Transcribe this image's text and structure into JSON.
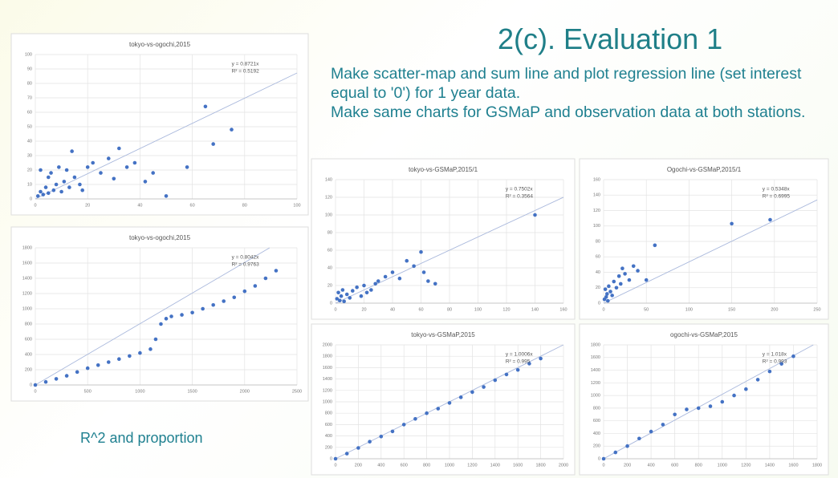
{
  "title": "2(c). Evaluation 1",
  "description": [
    "Make scatter-map and sum line and plot regression line (set interest equal to '0') for 1 year data.",
    "Make same charts for GSMaP and observation data at both stations."
  ],
  "caption": "R^2 and proportion",
  "chart_data": [
    {
      "type": "scatter",
      "title": "tokyo-vs-ogochi,2015",
      "color": "#4472c4",
      "x": [
        1,
        2,
        2,
        3,
        4,
        5,
        5,
        6,
        7,
        8,
        9,
        10,
        11,
        12,
        13,
        14,
        15,
        17,
        18,
        20,
        22,
        25,
        28,
        30,
        32,
        35,
        38,
        42,
        45,
        50,
        58,
        65,
        68,
        75
      ],
      "values": [
        2,
        20,
        5,
        3,
        8,
        15,
        4,
        18,
        6,
        10,
        22,
        5,
        12,
        20,
        8,
        33,
        15,
        10,
        6,
        22,
        25,
        18,
        28,
        14,
        35,
        22,
        25,
        12,
        18,
        2,
        22,
        64,
        38,
        48
      ],
      "trendline": {
        "slope": 0.8721,
        "label": "y = 0.8721x"
      },
      "r2_label": "R² = 0.5192",
      "xlim": [
        0,
        100
      ],
      "xticks": [
        0,
        20,
        40,
        60,
        80,
        100
      ],
      "ylim": [
        0,
        100
      ],
      "yticks": [
        0,
        10,
        20,
        30,
        40,
        50,
        60,
        70,
        80,
        90,
        100
      ],
      "grid": true
    },
    {
      "type": "scatter",
      "title": "tokyo-vs-ogochi,2015",
      "color": "#4472c4",
      "x": [
        0,
        100,
        200,
        300,
        400,
        500,
        600,
        700,
        800,
        900,
        1000,
        1100,
        1150,
        1200,
        1250,
        1300,
        1400,
        1500,
        1600,
        1700,
        1800,
        1900,
        2000,
        2100,
        2200,
        2300
      ],
      "values": [
        0,
        40,
        80,
        120,
        170,
        220,
        260,
        300,
        340,
        380,
        420,
        470,
        600,
        800,
        870,
        900,
        920,
        950,
        1000,
        1050,
        1100,
        1150,
        1230,
        1300,
        1400,
        1500
      ],
      "trendline": {
        "slope": 0.8042,
        "label": "y = 0.8042x"
      },
      "r2_label": "R² = 0.9763",
      "xlim": [
        0,
        2500
      ],
      "xticks": [
        0,
        500,
        1000,
        1500,
        2000,
        2500
      ],
      "ylim": [
        0,
        1800
      ],
      "yticks": [
        0,
        200,
        400,
        600,
        800,
        1000,
        1200,
        1400,
        1600,
        1800
      ],
      "grid": true
    },
    {
      "type": "scatter",
      "title": "tokyo-vs-GSMaP,2015/1",
      "color": "#4472c4",
      "x": [
        1,
        2,
        3,
        4,
        5,
        6,
        8,
        10,
        12,
        15,
        18,
        20,
        22,
        25,
        28,
        30,
        35,
        40,
        45,
        50,
        55,
        60,
        62,
        65,
        70,
        140
      ],
      "values": [
        5,
        12,
        3,
        8,
        15,
        2,
        10,
        6,
        14,
        18,
        8,
        20,
        12,
        15,
        22,
        25,
        30,
        35,
        28,
        48,
        42,
        58,
        35,
        25,
        22,
        100
      ],
      "trendline": {
        "slope": 0.7502,
        "label": "y = 0.7502x"
      },
      "r2_label": "R² = 0.3564",
      "xlim": [
        0,
        160
      ],
      "xticks": [
        0,
        20,
        40,
        60,
        80,
        100,
        120,
        140,
        160
      ],
      "ylim": [
        0,
        140
      ],
      "yticks": [
        0,
        20,
        40,
        60,
        80,
        100,
        120,
        140
      ],
      "grid": true
    },
    {
      "type": "scatter",
      "title": "Ogochi-vs-GSMaP,2015/1",
      "color": "#4472c4",
      "x": [
        1,
        2,
        3,
        4,
        5,
        6,
        8,
        10,
        12,
        15,
        18,
        20,
        22,
        25,
        30,
        35,
        40,
        50,
        60,
        150,
        195
      ],
      "values": [
        5,
        18,
        8,
        12,
        3,
        22,
        15,
        10,
        28,
        20,
        35,
        25,
        45,
        38,
        30,
        48,
        42,
        30,
        75,
        103,
        108
      ],
      "trendline": {
        "slope": 0.5348,
        "label": "y = 0.5348x"
      },
      "r2_label": "R² = 0.6995",
      "xlim": [
        0,
        250
      ],
      "xticks": [
        0,
        50,
        100,
        150,
        200,
        250
      ],
      "ylim": [
        0,
        160
      ],
      "yticks": [
        0,
        20,
        40,
        60,
        80,
        100,
        120,
        140,
        160
      ],
      "grid": true
    },
    {
      "type": "scatter",
      "title": "tokyo-vs-GSMaP,2015",
      "color": "#4472c4",
      "x": [
        0,
        100,
        200,
        300,
        400,
        500,
        600,
        700,
        800,
        900,
        1000,
        1100,
        1200,
        1300,
        1400,
        1500,
        1600,
        1700,
        1800
      ],
      "values": [
        0,
        90,
        190,
        300,
        390,
        480,
        600,
        700,
        800,
        880,
        980,
        1080,
        1170,
        1260,
        1380,
        1480,
        1560,
        1670,
        1760
      ],
      "trendline": {
        "slope": 1.0006,
        "label": "y = 1.0006x"
      },
      "r2_label": "R² = 0.995",
      "xlim": [
        0,
        2000
      ],
      "xticks": [
        0,
        200,
        400,
        600,
        800,
        1000,
        1200,
        1400,
        1600,
        1800,
        2000
      ],
      "ylim": [
        0,
        2000
      ],
      "yticks": [
        0,
        200,
        400,
        600,
        800,
        1000,
        1200,
        1400,
        1600,
        1800,
        2000
      ],
      "grid": true
    },
    {
      "type": "scatter",
      "title": "ogochi-vs-GSMaP,2015",
      "color": "#4472c4",
      "x": [
        0,
        100,
        200,
        300,
        400,
        500,
        600,
        700,
        800,
        900,
        1000,
        1100,
        1200,
        1300,
        1400,
        1500,
        1600
      ],
      "values": [
        0,
        100,
        200,
        320,
        430,
        540,
        700,
        780,
        800,
        830,
        900,
        1000,
        1100,
        1250,
        1380,
        1500,
        1620
      ],
      "trendline": {
        "slope": 1.018,
        "label": "y = 1.018x"
      },
      "r2_label": "R² = 0.993",
      "xlim": [
        0,
        1800
      ],
      "xticks": [
        0,
        200,
        400,
        600,
        800,
        1000,
        1200,
        1400,
        1600,
        1800
      ],
      "ylim": [
        0,
        1800
      ],
      "yticks": [
        0,
        200,
        400,
        600,
        800,
        1000,
        1200,
        1400,
        1600,
        1800
      ],
      "grid": true
    }
  ]
}
